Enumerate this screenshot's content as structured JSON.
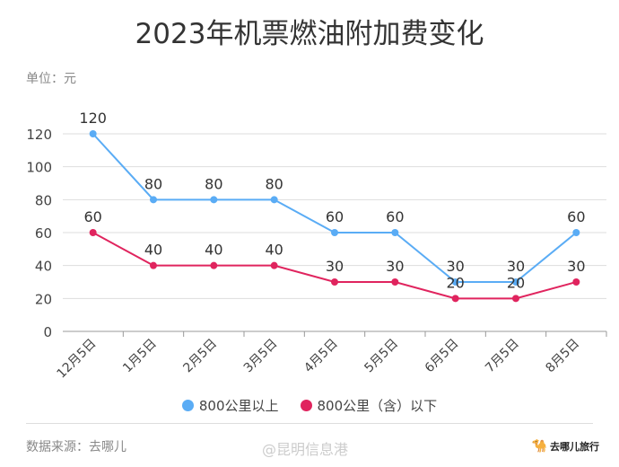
{
  "chart_data": {
    "type": "line",
    "title": "2023年机票燃油附加费变化",
    "unit_label": "单位：元",
    "categories": [
      "12月5日",
      "1月5日",
      "2月5日",
      "3月5日",
      "4月5日",
      "5月5日",
      "6月5日",
      "7月5日",
      "8月5日"
    ],
    "series": [
      {
        "name": "800公里以上",
        "color": "#5aacf5",
        "values": [
          120,
          80,
          80,
          80,
          60,
          60,
          30,
          30,
          60
        ]
      },
      {
        "name": "800公里（含）以下",
        "color": "#e0245e",
        "values": [
          60,
          40,
          40,
          40,
          30,
          30,
          20,
          20,
          30
        ]
      }
    ],
    "ylim": [
      0,
      120
    ],
    "yticks": [
      0,
      20,
      40,
      60,
      80,
      100,
      120
    ],
    "grid": true,
    "legend": "bottom"
  },
  "footer": {
    "source": "数据来源：去哪儿",
    "watermark": "@昆明信息港",
    "brand": "去哪儿旅行"
  }
}
